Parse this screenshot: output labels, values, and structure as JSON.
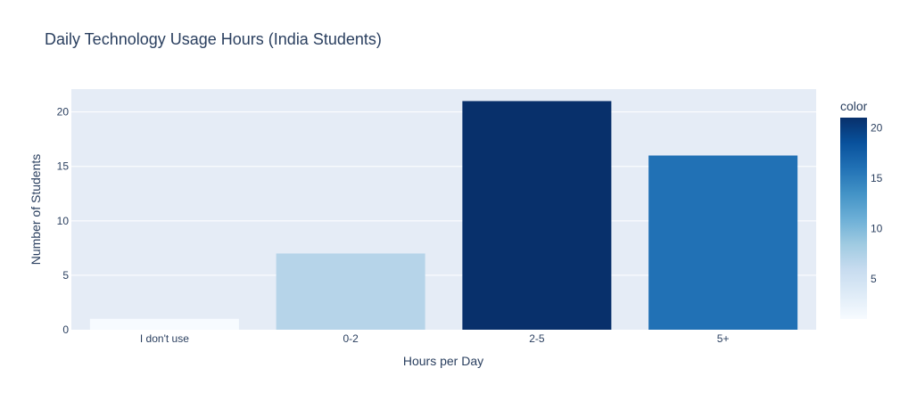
{
  "chart_data": {
    "type": "bar",
    "title": "Daily Technology Usage Hours (India Students)",
    "xlabel": "Hours per Day",
    "ylabel": "Number of Students",
    "categories": [
      "I don't use",
      "0-2",
      "2-5",
      "5+"
    ],
    "values": [
      1,
      7,
      21,
      16
    ],
    "ylim": [
      0,
      22.1
    ],
    "yticks": [
      0,
      5,
      10,
      15,
      20
    ],
    "grid": true,
    "colorbar": {
      "title": "color",
      "range": [
        1,
        21
      ],
      "ticks": [
        5,
        10,
        15,
        20
      ],
      "colorscale": "Blues"
    }
  },
  "colors": {
    "plot_bg": "#e5ecf6",
    "grid": "#ffffff",
    "text": "#2a3f5f",
    "scale": [
      "#f7fbff",
      "#deebf7",
      "#c6dbef",
      "#9ecae1",
      "#6baed6",
      "#4292c6",
      "#2171b5",
      "#08519c",
      "#08306b"
    ]
  }
}
